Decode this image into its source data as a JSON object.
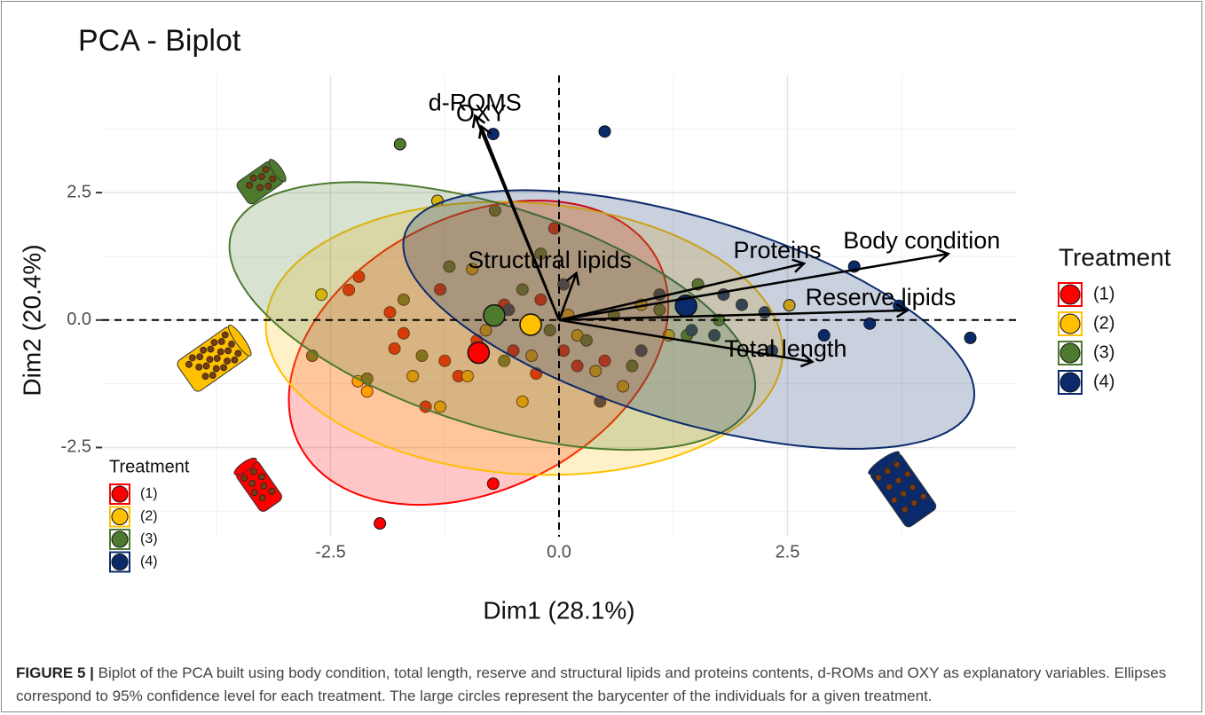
{
  "chart_data": {
    "type": "biplot",
    "title": "PCA - Biplot",
    "x_label": "Dim1 (28.1%)",
    "y_label": "Dim2 (20.4%)",
    "xlim": [
      -5,
      5
    ],
    "ylim": [
      -4.25,
      4.8
    ],
    "xticks": [
      -2.5,
      {
        "value": 0,
        "label": "0.0"
      },
      2.5
    ],
    "yticks": [
      -2.5,
      {
        "value": 0,
        "label": "0.0"
      },
      2.5
    ],
    "grid": true,
    "legend_title": "Treatment",
    "legend_position": "right",
    "series": [
      {
        "name": "(1)",
        "color": "#ff0000",
        "points": {
          "x": [
            -0.72,
            -1.96,
            -2.19,
            -2.3,
            -1.7,
            -1.8,
            -1.46,
            -1.1,
            -0.5,
            -0.2,
            -0.05,
            0.2,
            -1.3,
            -0.6,
            -0.9,
            0.5,
            -0.25,
            0.05,
            -1.85,
            -1.25
          ],
          "y": [
            -3.21,
            -3.99,
            0.85,
            0.59,
            -0.26,
            -0.56,
            -1.7,
            -1.1,
            -0.6,
            0.4,
            1.8,
            -0.9,
            0.6,
            0.3,
            -0.4,
            -0.8,
            -1.05,
            -0.6,
            0.15,
            -0.8
          ]
        },
        "barycenter": {
          "x": -0.88,
          "y": -0.64
        },
        "ellipse": {
          "cx": -0.88,
          "cy": -0.64,
          "a": 3.1,
          "b": 1.9,
          "angle": 70
        }
      },
      {
        "name": "(2)",
        "color": "#ffc000",
        "points": {
          "x": [
            -1.33,
            2.52,
            -2.6,
            -2.1,
            -1.6,
            -1.3,
            -0.4,
            0.4,
            0.9,
            -0.95,
            -0.8,
            0.1,
            1.2,
            -2.2,
            -0.3,
            0.7,
            -1.0,
            0.2
          ],
          "y": [
            2.34,
            0.29,
            0.5,
            -1.4,
            -1.1,
            -1.7,
            -1.6,
            -1.0,
            0.3,
            1.0,
            -0.2,
            0.1,
            -0.3,
            -1.2,
            -0.7,
            -1.3,
            -1.1,
            -0.3
          ]
        },
        "barycenter": {
          "x": -0.31,
          "y": -0.09
        },
        "ellipse": {
          "cx": -0.38,
          "cy": -0.36,
          "a": 2.9,
          "b": 2.6,
          "angle": -30
        }
      },
      {
        "name": "(3)",
        "color": "#4e7a2e",
        "points": {
          "x": [
            -1.74,
            1.52,
            1.4,
            -2.1,
            -1.7,
            -0.7,
            -0.2,
            0.3,
            1.75,
            -1.2,
            -0.4,
            0.6,
            -1.5,
            -2.7,
            0.8,
            1.1,
            -0.1,
            -0.6
          ],
          "y": [
            3.45,
            0.7,
            -0.3,
            -1.15,
            0.4,
            2.15,
            1.3,
            -0.4,
            0.0,
            1.05,
            0.6,
            0.1,
            -0.7,
            -0.7,
            -0.9,
            0.2,
            -0.2,
            -0.8
          ]
        },
        "barycenter": {
          "x": -0.71,
          "y": 0.09
        },
        "ellipse": {
          "cx": -0.73,
          "cy": 0.08,
          "a": 3.4,
          "b": 1.9,
          "angle": -40
        }
      },
      {
        "name": "(4)",
        "color": "#0b2a6b",
        "points": {
          "x": [
            0.5,
            -0.72,
            3.23,
            3.72,
            4.5,
            3.4,
            2.9,
            2.33,
            1.8,
            2.25,
            1.7,
            1.1,
            0.9,
            0.45,
            -0.55,
            0.05,
            1.45,
            2.0,
            -0.3
          ],
          "y": [
            3.7,
            3.65,
            1.05,
            0.28,
            -0.35,
            -0.07,
            -0.3,
            -0.6,
            0.5,
            0.15,
            -0.3,
            0.5,
            -0.6,
            -1.6,
            0.2,
            0.7,
            -0.2,
            0.3,
            0.0
          ]
        },
        "barycenter": {
          "x": 1.39,
          "y": 0.28
        },
        "ellipse": {
          "cx": 1.42,
          "cy": 0.01,
          "a": 3.6,
          "b": 1.8,
          "angle": -35
        }
      }
    ],
    "variables": [
      {
        "name": "d-ROMS",
        "x": -0.92,
        "y": 4.01
      },
      {
        "name": "OXY",
        "x": -0.85,
        "y": 3.8
      },
      {
        "name": "Structural lipids",
        "x": 0.19,
        "y": 0.92
      },
      {
        "name": "Body condition",
        "x": 4.26,
        "y": 1.3
      },
      {
        "name": "Proteins",
        "x": 2.68,
        "y": 1.11
      },
      {
        "name": "Reserve lipids",
        "x": 3.81,
        "y": 0.19
      },
      {
        "name": "Total length",
        "x": 2.77,
        "y": -0.82
      }
    ],
    "caption": {
      "label": "FIGURE 5 |",
      "text": "Biplot of the PCA built using body condition, total length, reserve and structural lipids and proteins contents, d-ROMs and OXY as explanatory variables. Ellipses correspond to 95% confidence level for each treatment. The large circles represent the barycenter of the individuals for a given treatment."
    }
  }
}
